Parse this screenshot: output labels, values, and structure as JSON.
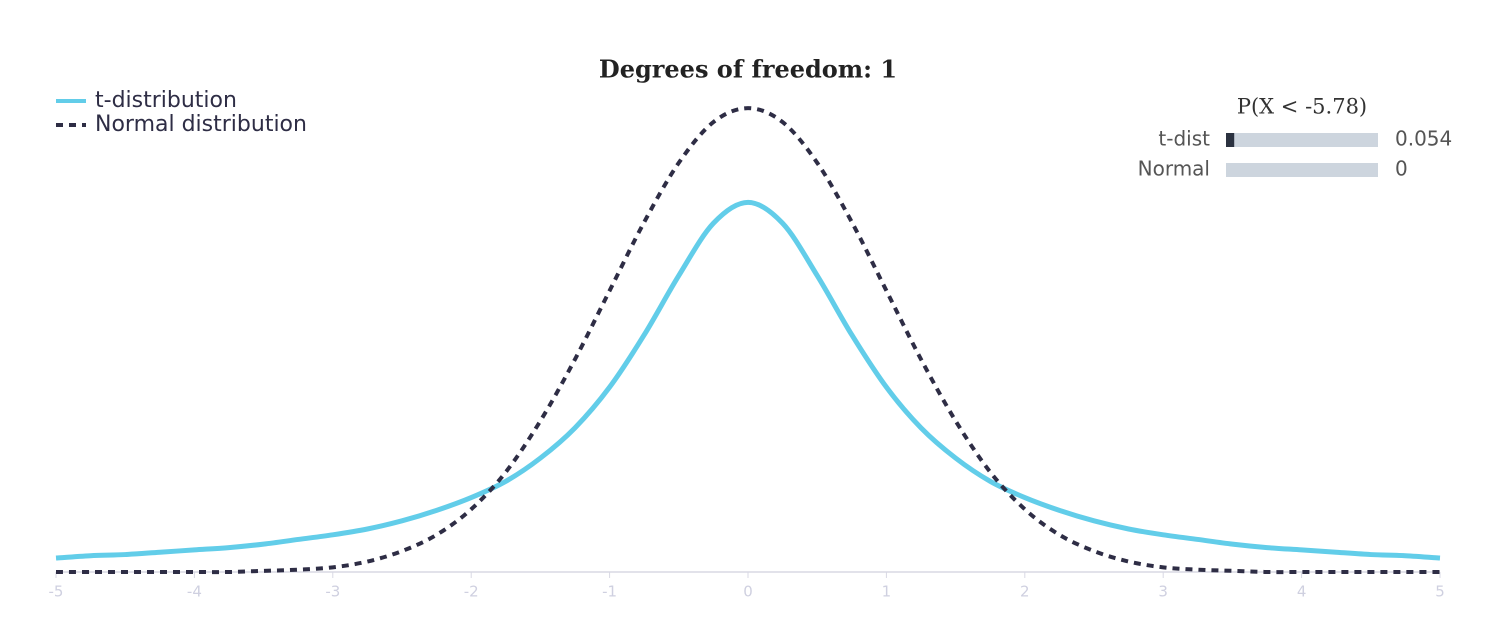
{
  "chart_data": [
    {
      "type": "line",
      "title": "Degrees of freedom: 1",
      "x": [
        -5,
        -4.75,
        -4.5,
        -4.25,
        -4,
        -3.75,
        -3.5,
        -3.25,
        -3,
        -2.75,
        -2.5,
        -2.25,
        -2,
        -1.75,
        -1.5,
        -1.25,
        -1,
        -0.75,
        -0.5,
        -0.25,
        0,
        0.25,
        0.5,
        0.75,
        1,
        1.25,
        1.5,
        1.75,
        2,
        2.25,
        2.5,
        2.75,
        3,
        3.25,
        3.5,
        3.75,
        4,
        4.25,
        4.5,
        4.75,
        5
      ],
      "series": [
        {
          "name": "t-distribution",
          "color": "#62cde9",
          "line_style": "solid",
          "values": [
            0.012,
            0.014,
            0.015,
            0.017,
            0.019,
            0.021,
            0.024,
            0.028,
            0.032,
            0.037,
            0.044,
            0.053,
            0.064,
            0.078,
            0.098,
            0.124,
            0.159,
            0.204,
            0.255,
            0.3,
            0.318,
            0.3,
            0.255,
            0.204,
            0.159,
            0.124,
            0.098,
            0.078,
            0.064,
            0.053,
            0.044,
            0.037,
            0.032,
            0.028,
            0.024,
            0.021,
            0.019,
            0.017,
            0.015,
            0.014,
            0.012
          ]
        },
        {
          "name": "Normal distribution",
          "color": "#2e2d45",
          "line_style": "dashed",
          "values": [
            0,
            0,
            0,
            0,
            0,
            0,
            0.001,
            0.002,
            0.004,
            0.009,
            0.018,
            0.032,
            0.054,
            0.086,
            0.13,
            0.183,
            0.242,
            0.301,
            0.352,
            0.387,
            0.399,
            0.387,
            0.352,
            0.301,
            0.242,
            0.183,
            0.13,
            0.086,
            0.054,
            0.032,
            0.018,
            0.009,
            0.004,
            0.002,
            0.001,
            0,
            0,
            0,
            0,
            0,
            0
          ]
        }
      ],
      "xlim": [
        -5,
        5
      ],
      "xticks": [
        -5,
        -4,
        -3,
        -2,
        -1,
        0,
        1,
        2,
        3,
        4,
        5
      ],
      "ylim": [
        0,
        0.4
      ],
      "legend": "top-left"
    },
    {
      "type": "hbar",
      "title": "P(X < -5.78)",
      "categories": [
        "t-dist",
        "Normal"
      ],
      "values": [
        0.054,
        0
      ],
      "xlim": [
        0,
        1
      ],
      "color": "#2b3240",
      "track_color": "#cdd5de"
    }
  ]
}
